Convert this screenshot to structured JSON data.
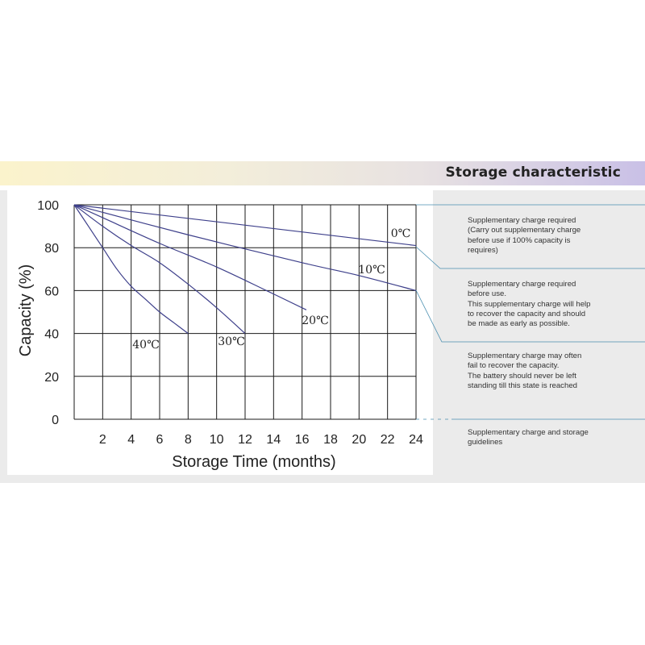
{
  "header": {
    "title": "Storage characteristic"
  },
  "chart_data": {
    "type": "line",
    "xlabel": "Storage Time (months)",
    "ylabel": "Capacity  (%)",
    "xlim": [
      0,
      24
    ],
    "ylim": [
      0,
      100
    ],
    "xticks": [
      2,
      4,
      6,
      8,
      10,
      12,
      14,
      16,
      18,
      20,
      22,
      24
    ],
    "yticks": [
      0,
      20,
      40,
      60,
      80,
      100
    ],
    "grid": true,
    "line_color": "#3d3f8a",
    "series": [
      {
        "name": "0℃",
        "points": [
          [
            0,
            100
          ],
          [
            24,
            81
          ]
        ]
      },
      {
        "name": "10℃",
        "points": [
          [
            0,
            100
          ],
          [
            8,
            86
          ],
          [
            16,
            73
          ],
          [
            20,
            67
          ],
          [
            24,
            60
          ]
        ]
      },
      {
        "name": "20℃",
        "points": [
          [
            0,
            100
          ],
          [
            2,
            94
          ],
          [
            6,
            82
          ],
          [
            10,
            71
          ],
          [
            13.5,
            60
          ],
          [
            16.3,
            51
          ]
        ]
      },
      {
        "name": "30℃",
        "points": [
          [
            0,
            100
          ],
          [
            2,
            90
          ],
          [
            4,
            81
          ],
          [
            6,
            73
          ],
          [
            8,
            63
          ],
          [
            10,
            52
          ],
          [
            12,
            40
          ]
        ]
      },
      {
        "name": "40℃",
        "points": [
          [
            0,
            100
          ],
          [
            1,
            90
          ],
          [
            2,
            80
          ],
          [
            3,
            70
          ],
          [
            4,
            62
          ],
          [
            5,
            56
          ],
          [
            6,
            50
          ],
          [
            7,
            45
          ],
          [
            8,
            40
          ]
        ]
      }
    ]
  },
  "notes": [
    "Supplementary charge required\n(Carry out supplementary charge\nbefore use if 100% capacity is\nrequires)",
    "Supplementary charge required\nbefore use.\nThis supplementary charge will help\nto recover the capacity and should\nbe made  as early as possible.",
    "Supplementary charge may often\nfail to recover the capacity.\nThe battery should never be left\nstanding till this state is reached",
    "Supplementary charge and storage\nguidelines"
  ]
}
